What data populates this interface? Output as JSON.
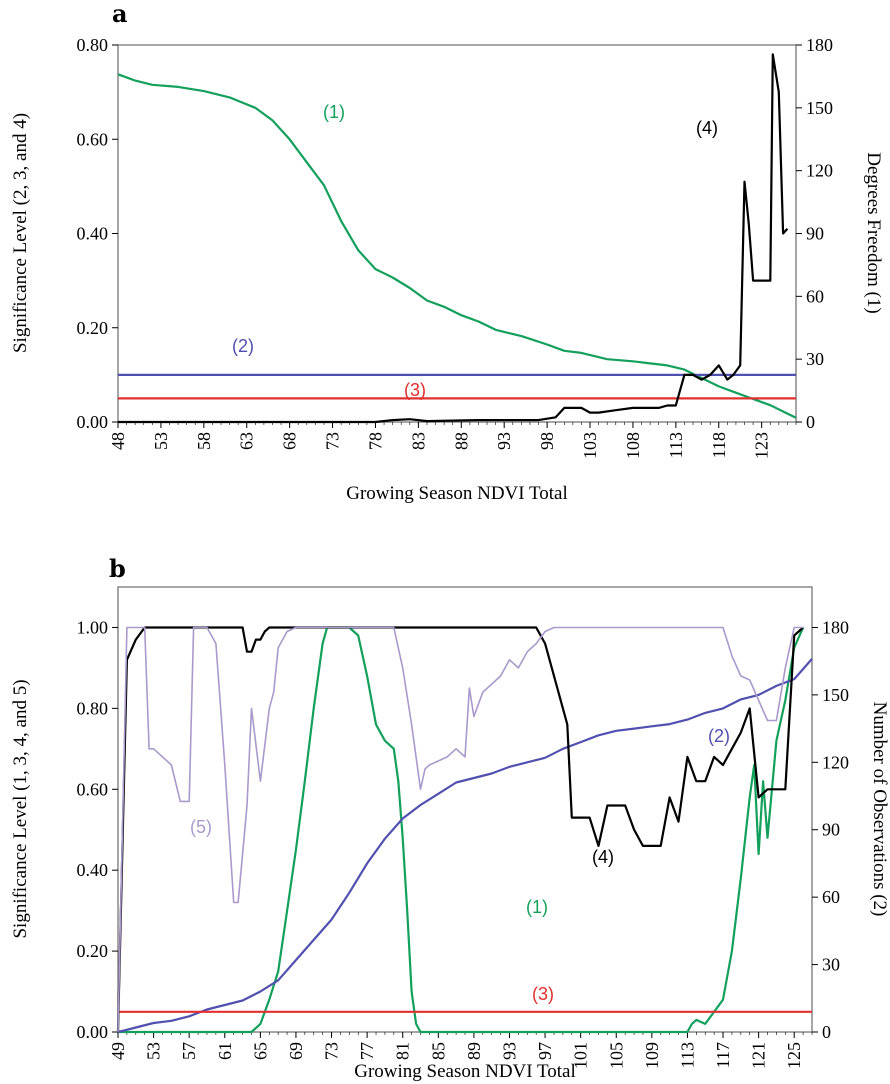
{
  "chart_data": [
    {
      "panel": "a",
      "type": "line",
      "xlabel": "Growing Season NDVI Total",
      "ylabel": "Significance Level (2, 3, and 4)",
      "y2label": "Degrees Freedom (1)",
      "xlim": [
        48,
        127
      ],
      "ylim": [
        0,
        0.8
      ],
      "y2lim": [
        0,
        180
      ],
      "x_ticks": [
        "48",
        "53",
        "58",
        "63",
        "68",
        "73",
        "78",
        "83",
        "88",
        "93",
        "98",
        "103",
        "108",
        "113",
        "118",
        "123"
      ],
      "y_ticks": [
        "0.00",
        "0.20",
        "0.40",
        "0.60",
        "0.80"
      ],
      "y2_ticks": [
        "0",
        "30",
        "60",
        "90",
        "120",
        "150",
        "180"
      ],
      "series": [
        {
          "label": "(1)",
          "color": "#12a05a",
          "axis": "right",
          "x": [
            48,
            50,
            52,
            55,
            58,
            61,
            64,
            66,
            68,
            70,
            72,
            74,
            76,
            78,
            80,
            82,
            84,
            86,
            88,
            90,
            92,
            95,
            98,
            100,
            102,
            105,
            108,
            110,
            112,
            114,
            116,
            118,
            120,
            122,
            124,
            126,
            127
          ],
          "y": [
            166,
            163,
            161,
            160,
            158,
            155,
            150,
            144,
            135,
            124,
            113,
            96,
            82,
            73,
            69,
            64,
            58,
            55,
            51,
            48,
            44,
            41,
            37,
            34,
            33,
            30,
            29,
            28,
            27,
            25,
            21,
            17,
            14,
            11,
            8,
            4,
            2
          ]
        },
        {
          "label": "(2)",
          "color": "#5050b0",
          "axis": "left",
          "x": [
            48,
            127
          ],
          "y": [
            0.1,
            0.1
          ]
        },
        {
          "label": "(3)",
          "color": "#e03030",
          "axis": "left",
          "x": [
            48,
            127
          ],
          "y": [
            0.05,
            0.05
          ]
        },
        {
          "label": "(4)",
          "color": "#000000",
          "axis": "left",
          "x": [
            48,
            78,
            80,
            82,
            84,
            90,
            97,
            99,
            100,
            101,
            102,
            103,
            104,
            106,
            108,
            110,
            111,
            112,
            113,
            114,
            115,
            116,
            117,
            118,
            119,
            119.7,
            120.5,
            121,
            121.5,
            122,
            123,
            124,
            124.3,
            125,
            125.5,
            126
          ],
          "y": [
            0,
            0,
            0.004,
            0.006,
            0.002,
            0.004,
            0.004,
            0.01,
            0.03,
            0.03,
            0.03,
            0.02,
            0.02,
            0.025,
            0.03,
            0.03,
            0.03,
            0.035,
            0.035,
            0.1,
            0.1,
            0.09,
            0.1,
            0.12,
            0.09,
            0.1,
            0.12,
            0.51,
            0.42,
            0.3,
            0.3,
            0.3,
            0.78,
            0.7,
            0.4,
            0.41
          ]
        }
      ]
    },
    {
      "panel": "b",
      "type": "line",
      "xlabel": "Growing Season NDVI Total",
      "ylabel": "Significance Level (1, 3, 4, and 5)",
      "y2label": "Number of Observations (2)",
      "xlim": [
        49,
        127
      ],
      "ylim": [
        0,
        1.1
      ],
      "y2lim": [
        0,
        198
      ],
      "x_ticks": [
        "49",
        "53",
        "57",
        "61",
        "65",
        "69",
        "73",
        "77",
        "81",
        "85",
        "89",
        "93",
        "97",
        "101",
        "105",
        "109",
        "113",
        "117",
        "121",
        "125"
      ],
      "y_ticks": [
        "0.00",
        "0.20",
        "0.40",
        "0.60",
        "0.80",
        "1.00"
      ],
      "y2_ticks": [
        "0",
        "30",
        "60",
        "90",
        "120",
        "150",
        "180"
      ],
      "series": [
        {
          "label": "(1)",
          "color": "#12a05a",
          "axis": "left",
          "x": [
            49,
            64,
            65,
            66,
            67,
            68,
            69,
            70,
            71,
            72,
            72.5,
            73,
            74,
            75,
            76,
            77,
            78,
            79,
            80,
            80.5,
            81,
            81.5,
            82,
            82.5,
            83,
            84,
            113,
            113.5,
            114,
            115,
            116,
            117,
            118,
            119,
            120,
            120.5,
            121,
            121.5,
            122,
            123,
            124,
            125,
            126
          ],
          "y": [
            0,
            0,
            0.02,
            0.08,
            0.15,
            0.3,
            0.45,
            0.62,
            0.8,
            0.96,
            1.0,
            1.0,
            1.0,
            1.0,
            0.98,
            0.88,
            0.76,
            0.72,
            0.7,
            0.62,
            0.48,
            0.3,
            0.1,
            0.02,
            0,
            0,
            0,
            0.02,
            0.03,
            0.02,
            0.05,
            0.08,
            0.2,
            0.38,
            0.58,
            0.66,
            0.44,
            0.62,
            0.48,
            0.72,
            0.82,
            0.95,
            1.0
          ]
        },
        {
          "label": "(2)",
          "color": "#5050b0",
          "axis": "right",
          "x": [
            49,
            51,
            53,
            55,
            57,
            59,
            61,
            63,
            65,
            67,
            69,
            71,
            73,
            75,
            77,
            79,
            81,
            83,
            85,
            87,
            89,
            91,
            93,
            95,
            97,
            99,
            101,
            103,
            105,
            107,
            109,
            111,
            113,
            115,
            117,
            119,
            121,
            123,
            125,
            127
          ],
          "y": [
            0,
            2,
            4,
            5,
            7,
            10,
            12,
            14,
            18,
            23,
            32,
            41,
            50,
            62,
            75,
            86,
            95,
            101,
            106,
            111,
            113,
            115,
            118,
            120,
            122,
            126,
            129,
            132,
            134,
            135,
            136,
            137,
            139,
            142,
            144,
            148,
            150,
            154,
            157,
            166
          ]
        },
        {
          "label": "(3)",
          "color": "#e03030",
          "axis": "left",
          "x": [
            49,
            127
          ],
          "y": [
            0.05,
            0.05
          ]
        },
        {
          "label": "(4)",
          "color": "#000000",
          "axis": "left",
          "x": [
            49,
            50,
            51,
            52,
            63,
            63.5,
            64,
            64.5,
            65,
            65.5,
            66,
            72,
            80,
            96,
            97,
            98,
            99,
            99.5,
            100,
            101,
            102,
            103,
            104,
            106,
            107,
            108,
            110,
            111,
            112,
            113,
            114,
            115,
            116,
            117,
            118,
            119,
            120,
            121,
            122,
            124,
            125,
            126
          ],
          "y": [
            0,
            0.92,
            0.97,
            1.0,
            1.0,
            0.94,
            0.94,
            0.97,
            0.97,
            0.99,
            1.0,
            1.0,
            1.0,
            1.0,
            0.96,
            0.88,
            0.8,
            0.76,
            0.53,
            0.53,
            0.53,
            0.46,
            0.56,
            0.56,
            0.5,
            0.46,
            0.46,
            0.58,
            0.52,
            0.68,
            0.62,
            0.62,
            0.68,
            0.66,
            0.7,
            0.74,
            0.8,
            0.58,
            0.6,
            0.6,
            0.98,
            1.0
          ]
        },
        {
          "label": "(5)",
          "color": "#aa99cc",
          "axis": "left",
          "x": [
            49,
            50,
            51,
            52,
            52.5,
            53,
            55,
            56,
            57,
            57.5,
            58,
            59,
            60,
            61,
            62,
            62.5,
            63,
            63.5,
            64,
            65,
            66,
            66.5,
            67,
            68,
            69,
            70,
            72,
            80,
            81,
            82,
            83,
            83.5,
            84,
            86,
            87,
            88,
            88.5,
            89,
            90,
            91,
            92,
            93,
            94,
            95,
            96,
            97,
            98,
            117,
            118,
            119,
            120,
            122,
            123,
            124,
            125,
            126
          ],
          "y": [
            0,
            1.0,
            1.0,
            1.0,
            0.7,
            0.7,
            0.66,
            0.57,
            0.57,
            1.0,
            1.0,
            1.0,
            0.96,
            0.66,
            0.32,
            0.32,
            0.44,
            0.56,
            0.8,
            0.62,
            0.8,
            0.84,
            0.95,
            0.99,
            1.0,
            1.0,
            1.0,
            1.0,
            0.9,
            0.76,
            0.6,
            0.65,
            0.66,
            0.68,
            0.7,
            0.68,
            0.85,
            0.78,
            0.84,
            0.86,
            0.88,
            0.92,
            0.9,
            0.94,
            0.96,
            0.99,
            1.0,
            1.0,
            0.93,
            0.88,
            0.87,
            0.77,
            0.77,
            0.9,
            1.0,
            1.0
          ]
        }
      ]
    }
  ],
  "panels": {
    "a": {
      "letter": "a",
      "xlabel": "Growing Season NDVI Total",
      "ylabel": "Significance Level (2, 3, and 4)",
      "y2label": "Degrees Freedom (1)",
      "labels": {
        "s1": "(1)",
        "s2": "(2)",
        "s3": "(3)",
        "s4": "(4)"
      }
    },
    "b": {
      "letter": "b",
      "xlabel": "Growing Season NDVI Total",
      "ylabel": "Significance Level (1, 3, 4, and 5)",
      "y2label": "Number of Observations (2)",
      "labels": {
        "s1": "(1)",
        "s2": "(2)",
        "s3": "(3)",
        "s4": "(4)",
        "s5": "(5)"
      }
    }
  },
  "colors": {
    "green": "#12a05a",
    "blue": "#5050b0",
    "red": "#e03030",
    "black": "#000000",
    "lavender": "#aa99cc"
  }
}
